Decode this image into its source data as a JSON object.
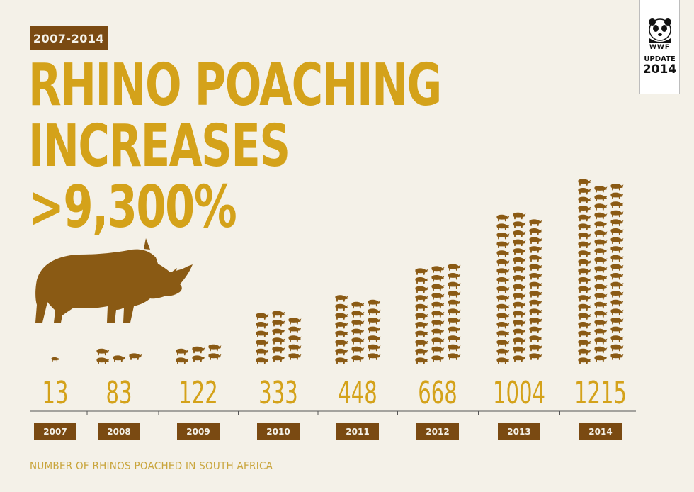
{
  "badge": "2007-2014",
  "headline": [
    "RHINO POACHING",
    "INCREASES",
    ">9,300%"
  ],
  "footnote": "NUMBER OF RHINOS POACHED IN SOUTH AFRICA",
  "logo": {
    "brand": "WWF",
    "label": "UPDATE",
    "year": "2014"
  },
  "colors": {
    "background": "#f4f1e8",
    "headline": "#d4a21a",
    "icon": "#8a5a14",
    "value_text": "#d4a21a",
    "year_box": "#7a4a12",
    "axis": "#555555"
  },
  "chart_data": {
    "type": "bar",
    "categories": [
      "2007",
      "2008",
      "2009",
      "2010",
      "2011",
      "2012",
      "2013",
      "2014"
    ],
    "values": [
      13,
      83,
      122,
      333,
      448,
      668,
      1004,
      1215
    ],
    "value_labels": [
      "13",
      "83",
      "122",
      "333",
      "448",
      "668",
      "1004",
      "1215"
    ],
    "ylim": [
      0,
      1215
    ],
    "grid": false,
    "legend": "none"
  }
}
